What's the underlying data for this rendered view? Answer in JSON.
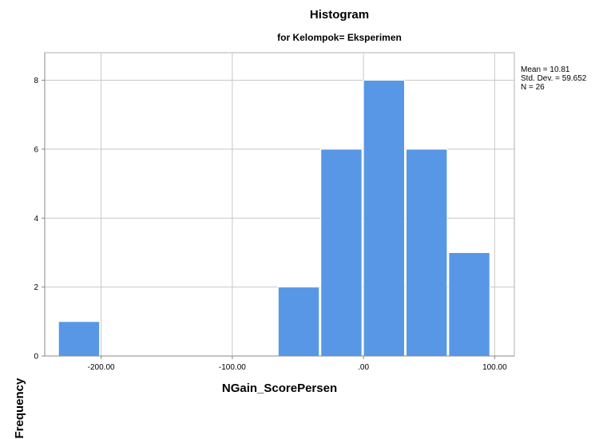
{
  "chart_data": {
    "type": "bar",
    "title": "Histogram",
    "subtitle": "for Kelompok= Eksperimen",
    "xlabel": "NGain_ScorePersen",
    "ylabel": "Frequency",
    "x_ticks": [
      -200,
      -100,
      0,
      100
    ],
    "x_tick_labels": [
      "-200.00",
      "-100.00",
      ".00",
      "100.00"
    ],
    "y_ticks": [
      0,
      2,
      4,
      6,
      8
    ],
    "y_tick_labels": [
      "0",
      "2",
      "4",
      "6",
      "8"
    ],
    "xlim": [
      -243,
      115
    ],
    "ylim": [
      0,
      8.8
    ],
    "bins": [
      {
        "start": -232.5,
        "end": -200,
        "count": 1
      },
      {
        "start": -200,
        "end": -167.5,
        "count": 0
      },
      {
        "start": -167.5,
        "end": -135,
        "count": 0
      },
      {
        "start": -135,
        "end": -102.5,
        "count": 0
      },
      {
        "start": -102.5,
        "end": -70,
        "count": 0
      },
      {
        "start": -65,
        "end": -32.5,
        "count": 2
      },
      {
        "start": -32.5,
        "end": 0,
        "count": 6
      },
      {
        "start": 0,
        "end": 32.5,
        "count": 8
      },
      {
        "start": 32.5,
        "end": 65,
        "count": 6
      },
      {
        "start": 65,
        "end": 97.5,
        "count": 3
      }
    ],
    "grid": true,
    "bar_color": "#5797e6",
    "stats": {
      "mean": "Mean = 10.81",
      "std_dev": "Std. Dev. = 59.652",
      "n": "N = 26"
    }
  }
}
